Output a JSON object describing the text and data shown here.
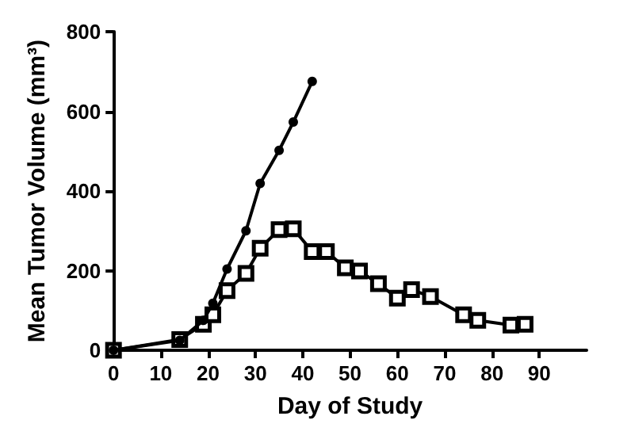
{
  "chart_data": {
    "type": "line",
    "xlabel": "Day of Study",
    "ylabel": "Mean Tumor Volume (mm³)",
    "xlim": [
      0,
      100
    ],
    "xticks": [
      0,
      10,
      20,
      30,
      40,
      50,
      60,
      70,
      80,
      90
    ],
    "ylim": [
      0,
      800
    ],
    "yticks": [
      0,
      200,
      400,
      600,
      800
    ],
    "grid": false,
    "line_style": "solid",
    "series": [
      {
        "color": "#000000",
        "marker": "circle",
        "x": [
          0,
          14,
          19,
          21,
          24,
          28,
          31,
          35,
          38,
          42
        ],
        "values": [
          0,
          25,
          75,
          118,
          204,
          300,
          419,
          502,
          573,
          675
        ]
      },
      {
        "color": "#000000",
        "marker": "square",
        "x": [
          0,
          14,
          19,
          21,
          24,
          28,
          31,
          35,
          38,
          42,
          45,
          49,
          52,
          56,
          60,
          63,
          67,
          74,
          77,
          84,
          87
        ],
        "values": [
          0,
          27,
          65,
          89,
          150,
          193,
          256,
          303,
          305,
          248,
          248,
          207,
          199,
          167,
          131,
          152,
          135,
          89,
          75,
          63,
          65
        ]
      }
    ]
  }
}
